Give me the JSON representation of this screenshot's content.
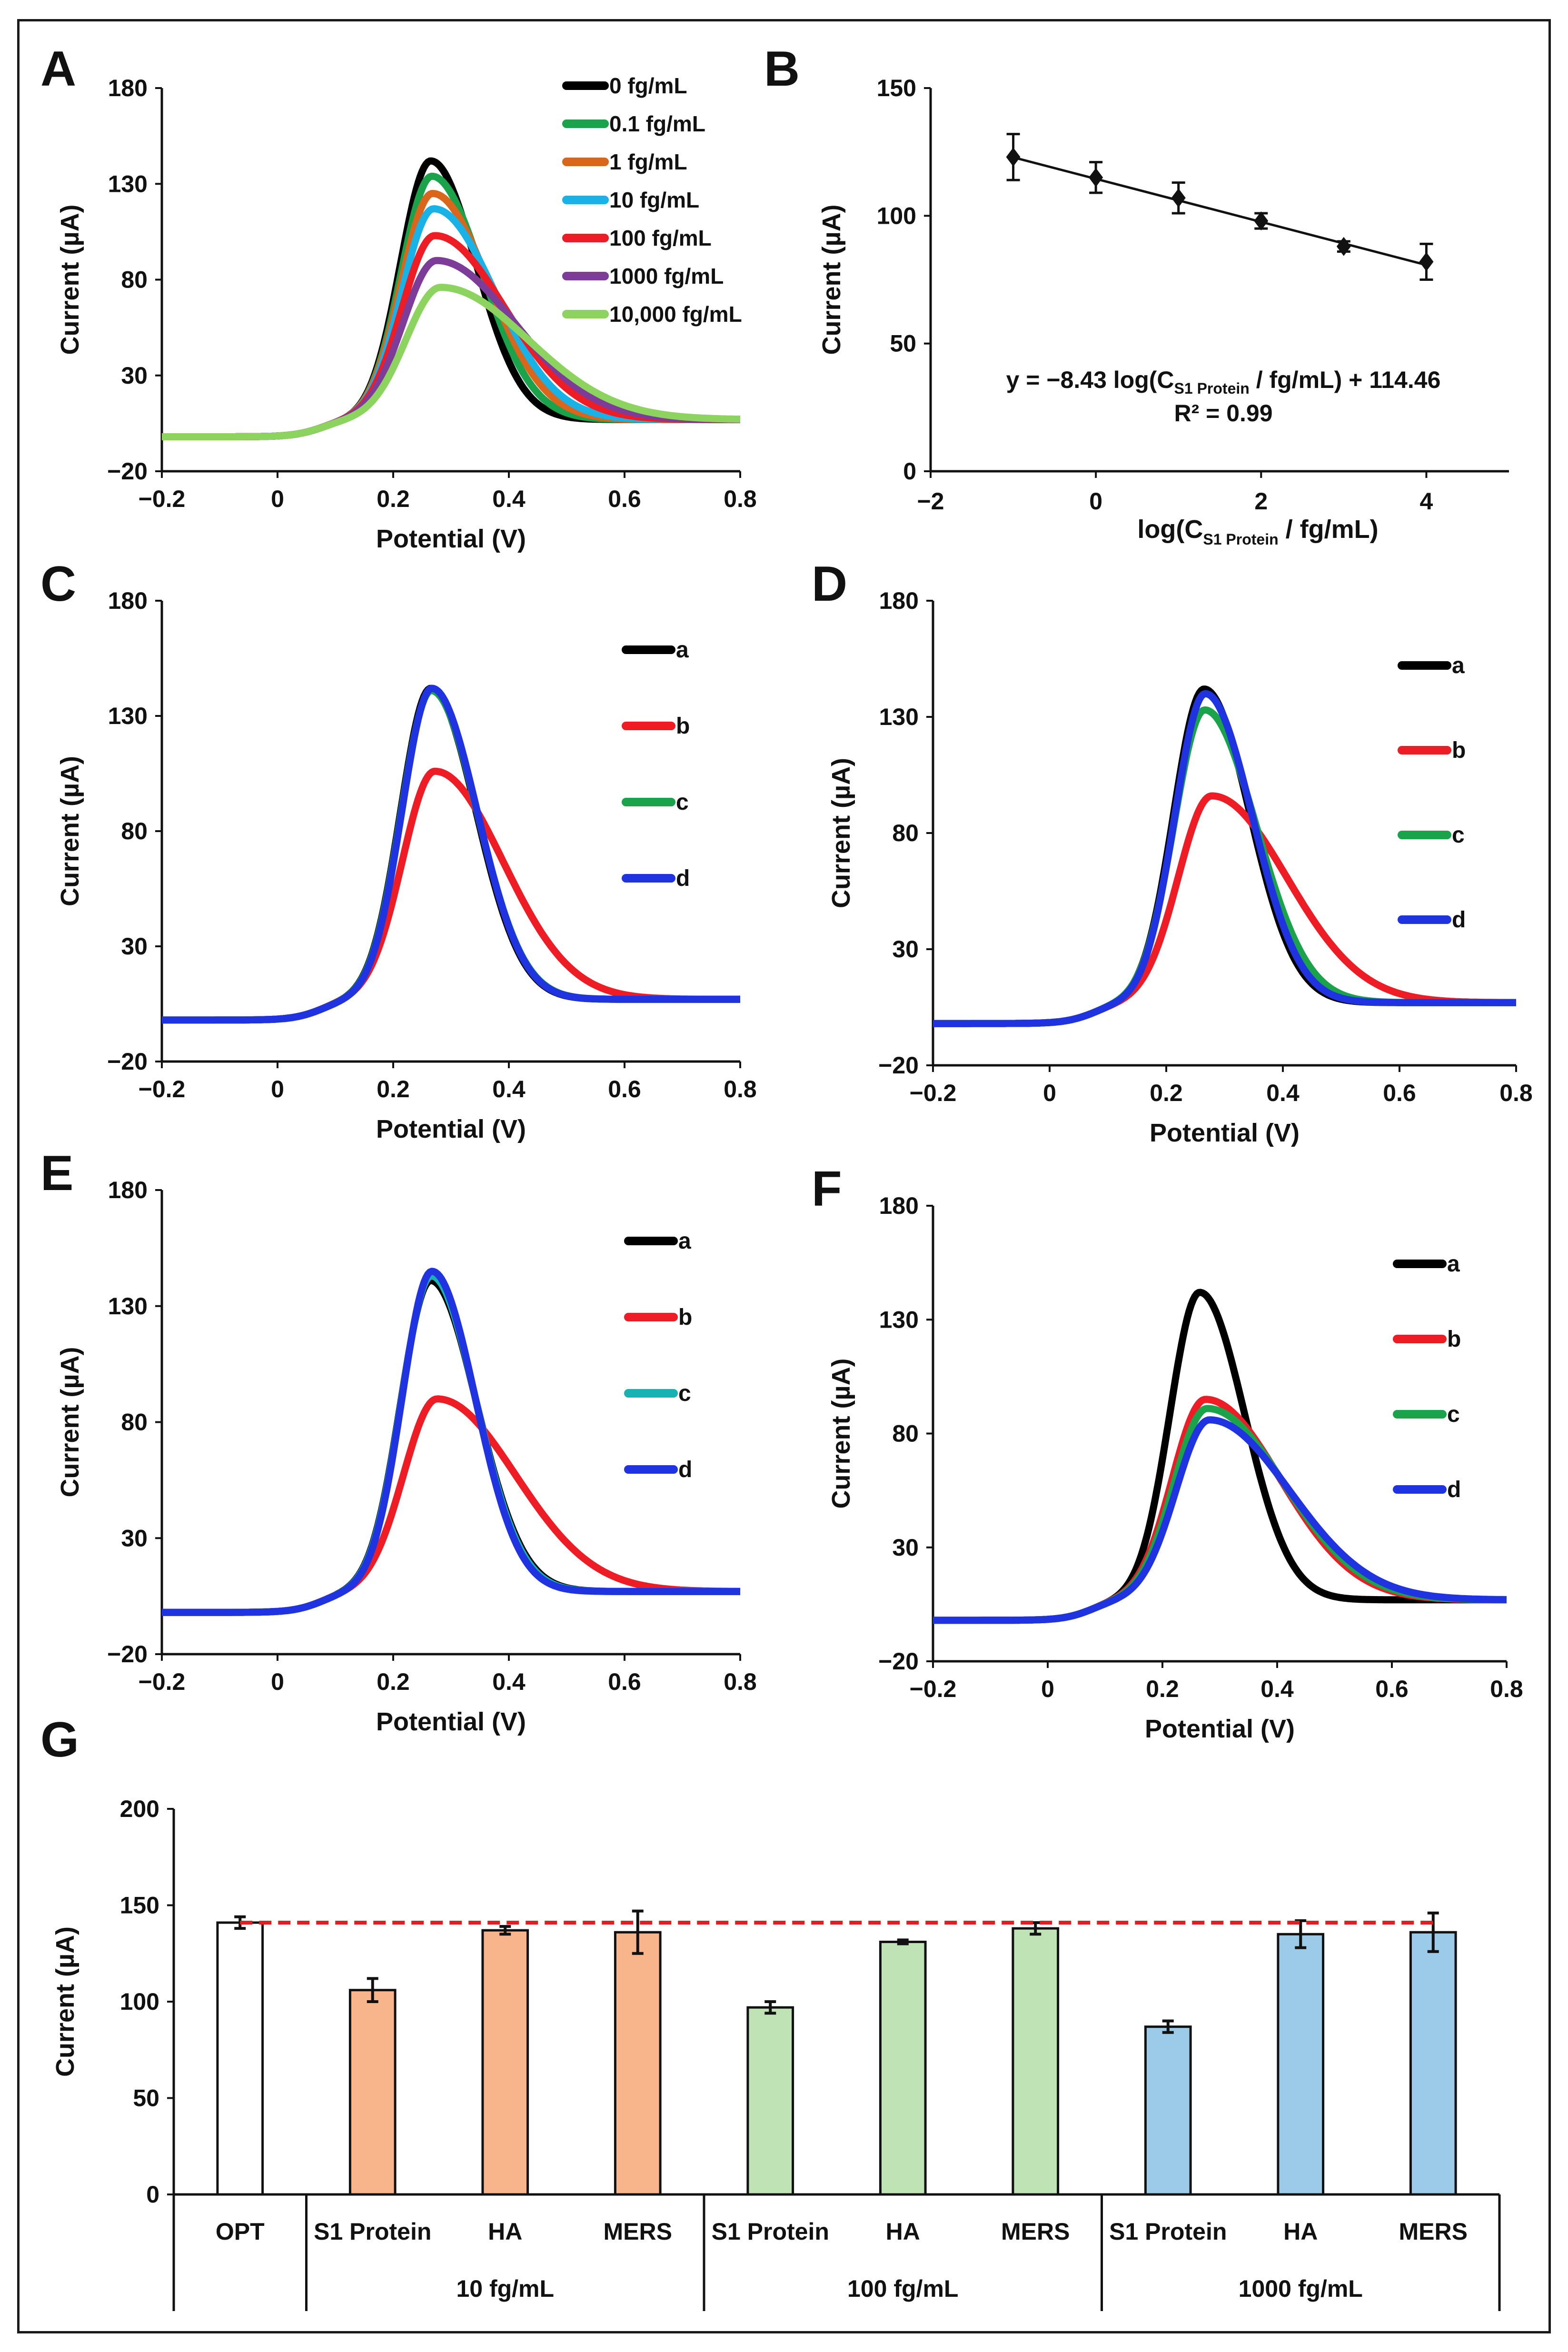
{
  "chart_data": [
    {
      "panel": "A",
      "type": "line",
      "xlabel": "Potential (V)",
      "ylabel": "Current (µA)",
      "xlim": [
        -0.2,
        0.8
      ],
      "ylim": [
        -20,
        180
      ],
      "xticks": [
        "−0.2",
        "0",
        "0.2",
        "0.4",
        "0.6",
        "0.8"
      ],
      "yticks": [
        "−20",
        "30",
        "80",
        "130",
        "180"
      ],
      "series": [
        {
          "name": "0 fg/mL",
          "color": "#000000",
          "peak_x": 0.265,
          "peak_y": 140
        },
        {
          "name": "0.1 fg/mL",
          "color": "#1aa34a",
          "peak_x": 0.267,
          "peak_y": 132
        },
        {
          "name": "1 fg/mL",
          "color": "#d9661a",
          "peak_x": 0.268,
          "peak_y": 123
        },
        {
          "name": "10 fg/mL",
          "color": "#19b2e6",
          "peak_x": 0.27,
          "peak_y": 115
        },
        {
          "name": "100 fg/mL",
          "color": "#ee1c24",
          "peak_x": 0.272,
          "peak_y": 101
        },
        {
          "name": "1000 fg/mL",
          "color": "#7d3c98",
          "peak_x": 0.275,
          "peak_y": 88
        },
        {
          "name": "10,000 fg/mL",
          "color": "#8dd35f",
          "peak_x": 0.282,
          "peak_y": 74
        }
      ]
    },
    {
      "panel": "B",
      "type": "scatter",
      "xlabel_pre": "log(C",
      "xlabel_sub": "S1 Protein",
      "xlabel_post": " / fg/mL)",
      "ylabel": "Current (µA)",
      "xlim": [
        -2,
        5
      ],
      "ylim": [
        0,
        150
      ],
      "xticks": [
        "−2",
        "0",
        "2",
        "4"
      ],
      "yticks": [
        "0",
        "50",
        "100",
        "150"
      ],
      "x": [
        -1,
        0,
        1,
        2,
        3,
        4
      ],
      "y": [
        123,
        115,
        107,
        98,
        88,
        82
      ],
      "yerr": [
        9,
        6,
        6,
        3,
        2,
        7
      ],
      "fit": {
        "slope": -8.43,
        "intercept": 114.46
      },
      "equation_pre": "y = −8.43 log(C",
      "equation_sub": "S1 Protein",
      "equation_post": " / fg/mL) + 114.46",
      "r2": "R² = 0.99"
    },
    {
      "panel": "C",
      "type": "line",
      "xlabel": "Potential (V)",
      "ylabel": "Current (µA)",
      "xlim": [
        -0.2,
        0.8
      ],
      "ylim": [
        -20,
        180
      ],
      "xticks": [
        "−0.2",
        "0",
        "0.2",
        "0.4",
        "0.6",
        "0.8"
      ],
      "yticks": [
        "−20",
        "30",
        "80",
        "130",
        "180"
      ],
      "series": [
        {
          "name": "a",
          "color": "#000000",
          "peak_x": 0.265,
          "peak_y": 140
        },
        {
          "name": "b",
          "color": "#ee1c24",
          "peak_x": 0.272,
          "peak_y": 104
        },
        {
          "name": "c",
          "color": "#1aa34a",
          "peak_x": 0.266,
          "peak_y": 139
        },
        {
          "name": "d",
          "color": "#1f33e0",
          "peak_x": 0.267,
          "peak_y": 140
        }
      ]
    },
    {
      "panel": "D",
      "type": "line",
      "xlabel": "Potential (V)",
      "ylabel": "Current (µA)",
      "xlim": [
        -0.2,
        0.8
      ],
      "ylim": [
        -20,
        180
      ],
      "xticks": [
        "−0.2",
        "0",
        "0.2",
        "0.4",
        "0.6",
        "0.8"
      ],
      "yticks": [
        "−20",
        "30",
        "80",
        "130",
        "180"
      ],
      "series": [
        {
          "name": "a",
          "color": "#000000",
          "peak_x": 0.265,
          "peak_y": 140
        },
        {
          "name": "b",
          "color": "#ee1c24",
          "peak_x": 0.278,
          "peak_y": 94
        },
        {
          "name": "c",
          "color": "#1aa34a",
          "peak_x": 0.266,
          "peak_y": 131
        },
        {
          "name": "d",
          "color": "#1f33e0",
          "peak_x": 0.267,
          "peak_y": 138
        }
      ]
    },
    {
      "panel": "E",
      "type": "line",
      "xlabel": "Potential (V)",
      "ylabel": "Current (µA)",
      "xlim": [
        -0.2,
        0.8
      ],
      "ylim": [
        -20,
        180
      ],
      "xticks": [
        "−0.2",
        "0",
        "0.2",
        "0.4",
        "0.6",
        "0.8"
      ],
      "yticks": [
        "−20",
        "30",
        "80",
        "130",
        "180"
      ],
      "series": [
        {
          "name": "a",
          "color": "#000000",
          "peak_x": 0.265,
          "peak_y": 139
        },
        {
          "name": "b",
          "color": "#ee1c24",
          "peak_x": 0.276,
          "peak_y": 88
        },
        {
          "name": "c",
          "color": "#19b2b2",
          "peak_x": 0.266,
          "peak_y": 141
        },
        {
          "name": "d",
          "color": "#1f33e0",
          "peak_x": 0.267,
          "peak_y": 143
        }
      ]
    },
    {
      "panel": "F",
      "type": "line",
      "xlabel": "Potential (V)",
      "ylabel": "Current (µA)",
      "xlim": [
        -0.2,
        0.8
      ],
      "ylim": [
        -20,
        180
      ],
      "xticks": [
        "−0.2",
        "0",
        "0.2",
        "0.4",
        "0.6",
        "0.8"
      ],
      "yticks": [
        "−20",
        "30",
        "80",
        "130",
        "180"
      ],
      "series": [
        {
          "name": "a",
          "color": "#000000",
          "peak_x": 0.265,
          "peak_y": 140
        },
        {
          "name": "b",
          "color": "#ee1c24",
          "peak_x": 0.275,
          "peak_y": 93
        },
        {
          "name": "c",
          "color": "#1aa34a",
          "peak_x": 0.278,
          "peak_y": 89
        },
        {
          "name": "d",
          "color": "#1f33e0",
          "peak_x": 0.282,
          "peak_y": 84
        }
      ]
    },
    {
      "panel": "G",
      "type": "bar",
      "ylabel": "Current (µA)",
      "ylim": [
        0,
        200
      ],
      "yticks": [
        "0",
        "50",
        "100",
        "150",
        "200"
      ],
      "categories": [
        "OPT",
        "S1 Protein",
        "HA",
        "MERS",
        "S1 Protein",
        "HA",
        "MERS",
        "S1 Protein",
        "HA",
        "MERS"
      ],
      "values": [
        141,
        106,
        137,
        136,
        97,
        131,
        138,
        87,
        135,
        136
      ],
      "errors": [
        3,
        6,
        2,
        11,
        3,
        1,
        3,
        3,
        7,
        10
      ],
      "colors": [
        "#ffffff",
        "#f8b48a",
        "#f8b48a",
        "#f8b48a",
        "#bfe3b4",
        "#bfe3b4",
        "#bfe3b4",
        "#9ccbea",
        "#9ccbea",
        "#9ccbea"
      ],
      "groups": [
        "10 fg/mL",
        "100 fg/mL",
        "1000 fg/mL"
      ],
      "reference_line": 141,
      "reference_color": "#e02020"
    }
  ]
}
